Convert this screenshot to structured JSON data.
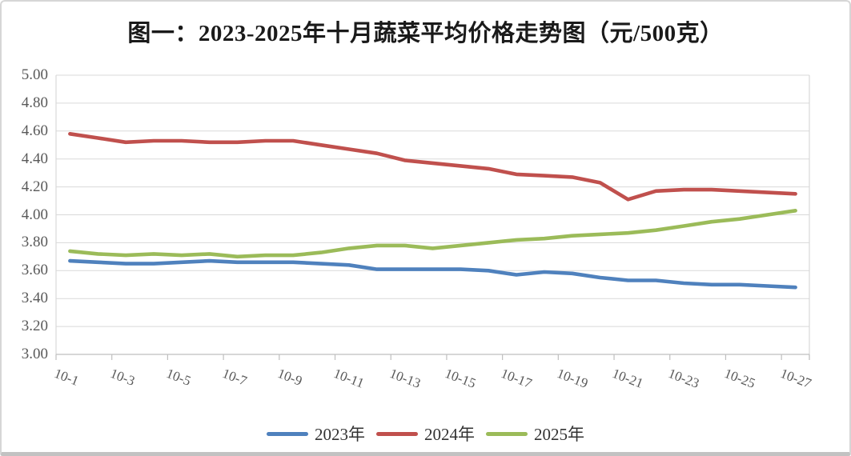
{
  "title": "图一：2023-2025年十月蔬菜平均价格走势图（元/500克）",
  "chart_data": {
    "type": "line",
    "title": "图一：2023-2025年十月蔬菜平均价格走势图（元/500克）",
    "unit": "元/500克",
    "categories": [
      "10-1",
      "10-2",
      "10-3",
      "10-4",
      "10-5",
      "10-6",
      "10-7",
      "10-8",
      "10-9",
      "10-10",
      "10-11",
      "10-12",
      "10-13",
      "10-14",
      "10-15",
      "10-16",
      "10-17",
      "10-18",
      "10-19",
      "10-20",
      "10-21",
      "10-22",
      "10-23",
      "10-24",
      "10-25",
      "10-26",
      "10-27"
    ],
    "x_tick_labels": [
      "10-1",
      "10-3",
      "10-5",
      "10-7",
      "10-9",
      "10-11",
      "10-13",
      "10-15",
      "10-17",
      "10-19",
      "10-21",
      "10-23",
      "10-25",
      "10-27"
    ],
    "x_label_interval": 2,
    "y_ticks": [
      "5.00",
      "4.80",
      "4.60",
      "4.40",
      "4.20",
      "4.00",
      "3.80",
      "3.60",
      "3.40",
      "3.20",
      "3.00"
    ],
    "ylim": [
      3.0,
      5.0
    ],
    "grid": "horizontal",
    "legend_position": "bottom",
    "series": [
      {
        "name": "2023年",
        "color": "#4F81BD",
        "values": [
          3.67,
          3.66,
          3.65,
          3.65,
          3.66,
          3.67,
          3.66,
          3.66,
          3.66,
          3.65,
          3.64,
          3.61,
          3.61,
          3.61,
          3.61,
          3.6,
          3.57,
          3.59,
          3.58,
          3.55,
          3.53,
          3.53,
          3.51,
          3.5,
          3.5,
          3.49,
          3.48
        ]
      },
      {
        "name": "2024年",
        "color": "#C0504D",
        "values": [
          4.58,
          4.55,
          4.52,
          4.53,
          4.53,
          4.52,
          4.52,
          4.53,
          4.53,
          4.5,
          4.47,
          4.44,
          4.39,
          4.37,
          4.35,
          4.33,
          4.29,
          4.28,
          4.27,
          4.23,
          4.11,
          4.17,
          4.18,
          4.18,
          4.17,
          4.16,
          4.15
        ]
      },
      {
        "name": "2025年",
        "color": "#9BBB59",
        "values": [
          3.74,
          3.72,
          3.71,
          3.72,
          3.71,
          3.72,
          3.7,
          3.71,
          3.71,
          3.73,
          3.76,
          3.78,
          3.78,
          3.76,
          3.78,
          3.8,
          3.82,
          3.83,
          3.85,
          3.86,
          3.87,
          3.89,
          3.92,
          3.95,
          3.97,
          4.0,
          4.03
        ]
      }
    ],
    "colors": {
      "gridline": "#D9D9D9",
      "axis_line": "#BFBFBF",
      "tick_label": "#595959",
      "title_text": "#1a1a1a"
    }
  }
}
